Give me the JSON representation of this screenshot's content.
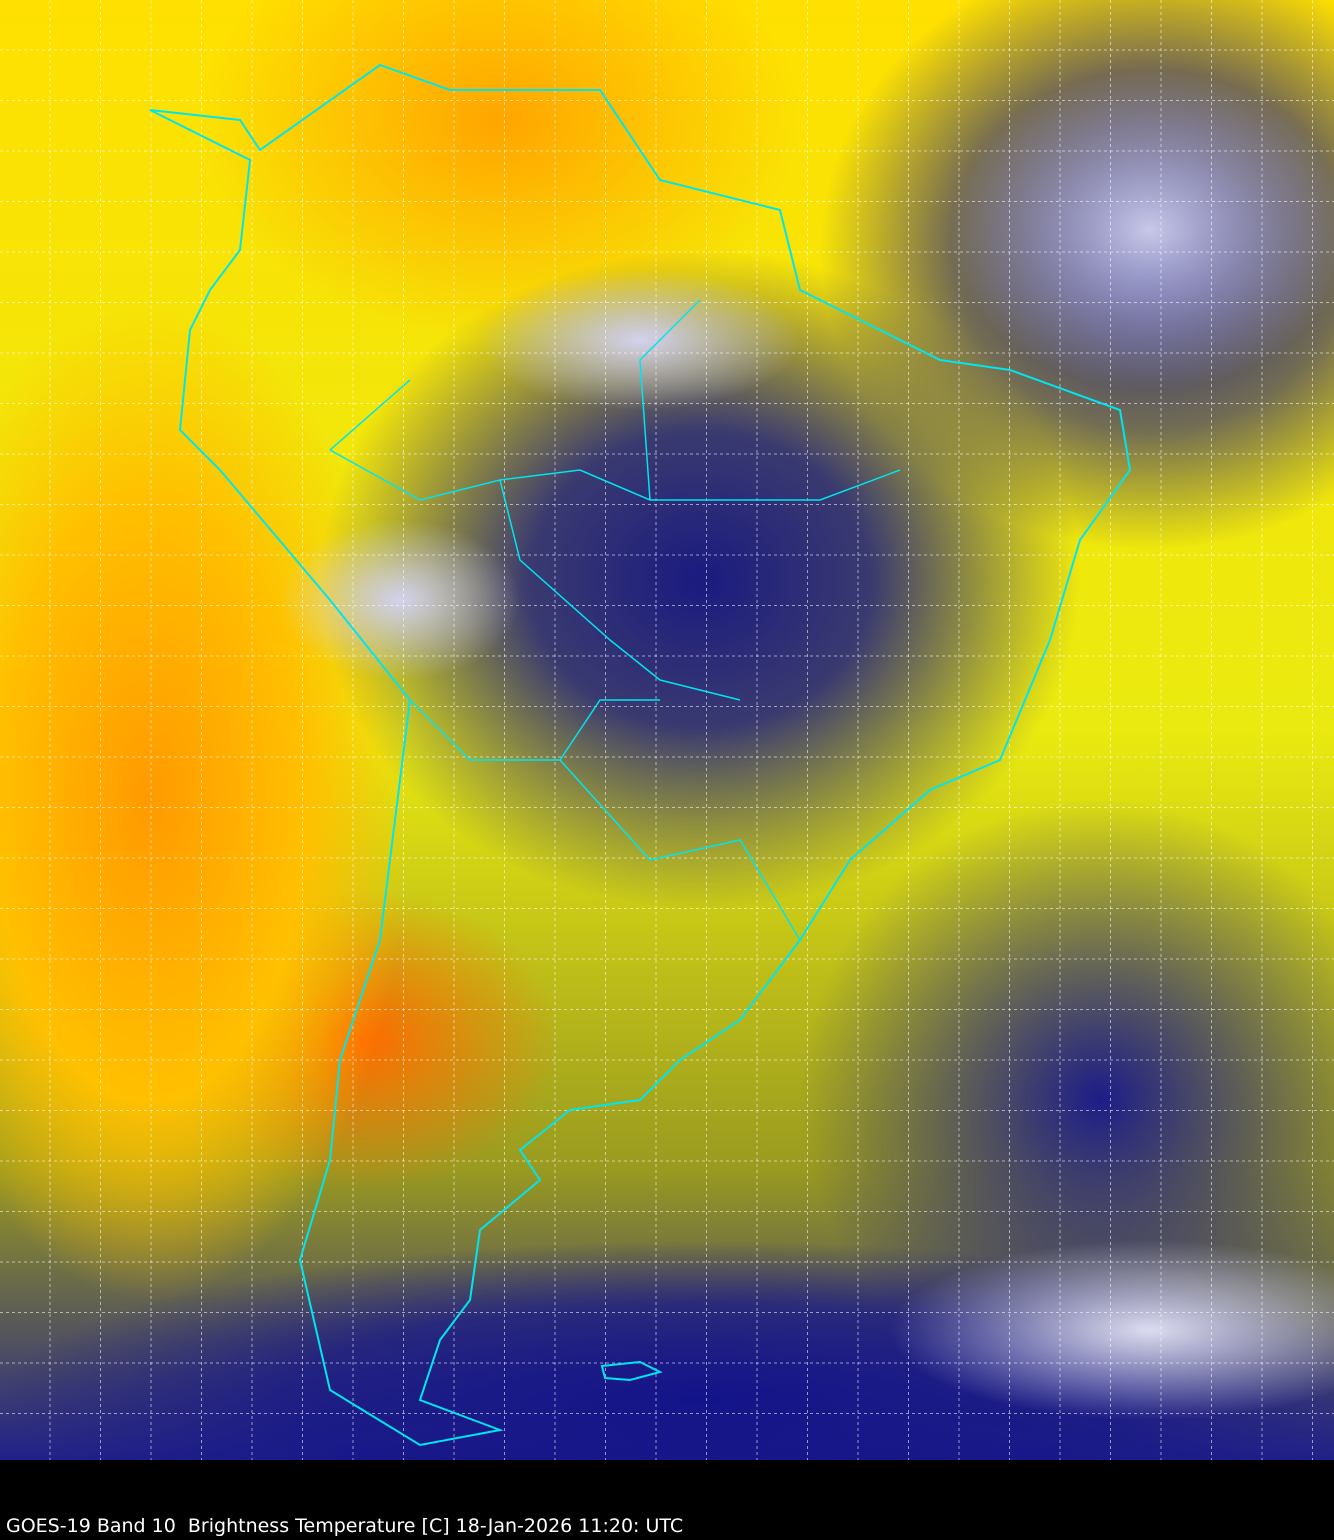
{
  "image": {
    "caption": "GOES-19 Band 10  Brightness Temperature [C] 18-Jan-2026 11:20: UTC",
    "colors": {
      "coastline": "#00e5ee",
      "grid": "#ffffff",
      "warm": "#ffa500",
      "mid": "#ffff00",
      "cold": "#141488",
      "coldest": "#ffffff"
    }
  }
}
